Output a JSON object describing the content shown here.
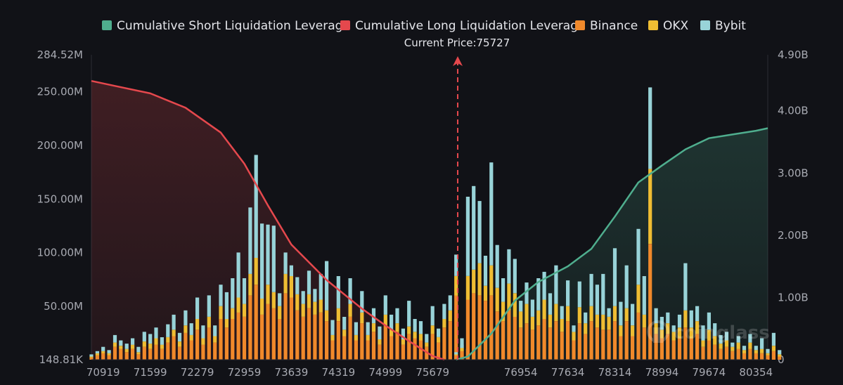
{
  "chart_data": {
    "type": "bar",
    "title": "",
    "current_price_label": "Current Price:75727",
    "current_price": 75727,
    "watermark": "coinglass",
    "legend": [
      {
        "name": "Cumulative Short Liquidation Leverage",
        "color": "#4fae8e",
        "kind": "line"
      },
      {
        "name": "Cumulative Long Liquidation Leverage",
        "color": "#e5484d",
        "kind": "line"
      },
      {
        "name": "Binance",
        "color": "#f0892b",
        "kind": "bar"
      },
      {
        "name": "OKX",
        "color": "#efbd33",
        "kind": "bar"
      },
      {
        "name": "Bybit",
        "color": "#98d3d8",
        "kind": "bar"
      }
    ],
    "x_tick_labels": [
      "70919",
      "71599",
      "72279",
      "72959",
      "73639",
      "74319",
      "74999",
      "75679",
      "76954",
      "77634",
      "78314",
      "78994",
      "79674",
      "80354"
    ],
    "x_range": [
      70749,
      80524
    ],
    "bar_step": 85,
    "y_left_tick_labels": [
      "148.81K",
      "50.00M",
      "100.00M",
      "150.00M",
      "200.00M",
      "250.00M",
      "284.52M"
    ],
    "y_left_tick_values": [
      0.14881,
      50,
      100,
      150,
      200,
      250,
      284.52
    ],
    "y_left_range": [
      0.14881,
      284.52
    ],
    "y_left_unit": "M",
    "y_right_tick_labels": [
      "0",
      "1.00B",
      "2.00B",
      "3.00B",
      "4.00B",
      "4.90B"
    ],
    "y_right_tick_values": [
      0,
      1,
      2,
      3,
      4,
      4.9
    ],
    "y_right_range": [
      0,
      4.9
    ],
    "y_right_unit": "B",
    "long_side": {
      "x_start": 70749,
      "binance": [
        2,
        4,
        6,
        4,
        12,
        10,
        7,
        10,
        5,
        12,
        10,
        14,
        10,
        16,
        22,
        12,
        25,
        18,
        28,
        14,
        30,
        16,
        38,
        30,
        38,
        44,
        40,
        60,
        70,
        42,
        52,
        48,
        38,
        62,
        58,
        46,
        40,
        48,
        42,
        44,
        36,
        18,
        36,
        22,
        40,
        18,
        34,
        18,
        26,
        14,
        32,
        22,
        26,
        14,
        24,
        20,
        18,
        12,
        24,
        16,
        30,
        36,
        60,
        8,
        4
      ],
      "okx": [
        1,
        2,
        2,
        2,
        4,
        3,
        3,
        4,
        2,
        5,
        5,
        6,
        4,
        5,
        6,
        5,
        7,
        5,
        10,
        6,
        10,
        6,
        12,
        8,
        10,
        14,
        12,
        20,
        25,
        15,
        18,
        15,
        12,
        18,
        20,
        15,
        12,
        13,
        12,
        12,
        10,
        5,
        12,
        6,
        12,
        5,
        10,
        5,
        8,
        5,
        10,
        6,
        8,
        5,
        7,
        6,
        6,
        4,
        8,
        5,
        8,
        10,
        18,
        2,
        2
      ],
      "bybit": [
        2,
        2,
        4,
        3,
        7,
        5,
        5,
        6,
        5,
        9,
        9,
        10,
        7,
        12,
        14,
        8,
        14,
        11,
        20,
        12,
        20,
        10,
        20,
        25,
        28,
        42,
        24,
        62,
        96,
        70,
        56,
        62,
        12,
        20,
        10,
        16,
        12,
        22,
        12,
        24,
        46,
        14,
        30,
        12,
        24,
        12,
        20,
        12,
        14,
        12,
        18,
        14,
        14,
        10,
        24,
        12,
        12,
        8,
        18,
        8,
        14,
        14,
        20,
        10,
        4
      ]
    },
    "short_side": {
      "x_start": 76019,
      "binance": [
        4,
        8,
        56,
        62,
        60,
        55,
        60,
        45,
        36,
        46,
        40,
        30,
        34,
        28,
        32,
        38,
        30,
        36,
        26,
        36,
        18,
        34,
        24,
        36,
        30,
        28,
        28,
        36,
        22,
        36,
        22,
        44,
        30,
        108,
        24,
        20,
        24,
        18,
        20,
        30,
        20,
        24,
        12,
        18,
        14,
        10,
        12,
        8,
        10,
        6,
        10,
        6,
        6,
        4,
        8,
        3
      ],
      "okx": [
        1,
        3,
        22,
        22,
        30,
        14,
        28,
        22,
        18,
        25,
        22,
        15,
        18,
        12,
        14,
        18,
        12,
        16,
        12,
        14,
        8,
        15,
        10,
        14,
        12,
        14,
        12,
        14,
        10,
        12,
        10,
        26,
        12,
        70,
        10,
        8,
        10,
        8,
        10,
        16,
        10,
        12,
        6,
        10,
        8,
        5,
        6,
        4,
        6,
        3,
        6,
        3,
        4,
        2,
        5,
        2
      ],
      "bybit": [
        2,
        3,
        74,
        78,
        58,
        28,
        96,
        40,
        22,
        32,
        32,
        10,
        20,
        16,
        30,
        26,
        20,
        36,
        12,
        24,
        6,
        24,
        10,
        30,
        28,
        38,
        8,
        54,
        22,
        40,
        20,
        52,
        36,
        76,
        14,
        12,
        10,
        6,
        12,
        44,
        16,
        14,
        14,
        16,
        12,
        8,
        8,
        4,
        6,
        4,
        8,
        4,
        10,
        4,
        12,
        4
      ]
    },
    "long_cumulative_line": {
      "x": [
        70749,
        71089,
        71599,
        72109,
        72619,
        72959,
        73299,
        73639,
        74149,
        74659,
        74999,
        75339,
        75679,
        75849
      ],
      "y": [
        4.48,
        4.4,
        4.28,
        4.05,
        3.65,
        3.15,
        2.48,
        1.85,
        1.28,
        0.82,
        0.55,
        0.3,
        0.06,
        0.0
      ]
    },
    "short_cumulative_line": {
      "x": [
        76019,
        76189,
        76529,
        76869,
        77209,
        77634,
        77974,
        78314,
        78654,
        78994,
        79334,
        79674,
        80014,
        80354,
        80524
      ],
      "y": [
        0.0,
        0.05,
        0.42,
        0.95,
        1.25,
        1.5,
        1.78,
        2.3,
        2.85,
        3.12,
        3.38,
        3.56,
        3.62,
        3.68,
        3.72
      ]
    }
  }
}
